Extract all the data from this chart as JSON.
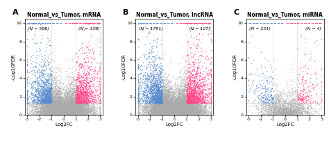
{
  "panels": [
    {
      "label": "A",
      "title": "Normal_vs_Tumor, mRNA",
      "n_left": "(N = 588)",
      "n_right": "(N = 118)",
      "xlim": [
        -3.2,
        3.2
      ],
      "ylim": [
        0,
        10.5
      ],
      "xlabel": "Log2FC",
      "ylabel": "-Log10FDR",
      "seed": 42,
      "n_total": 12000,
      "fc_thresh": 1.0,
      "fdr_thresh": 1.3
    },
    {
      "label": "B",
      "title": "Normal_vs_Tumor, lncRNA",
      "n_left": "(N = 1791)",
      "n_right": "(N = 107)",
      "xlim": [
        -3.2,
        3.2
      ],
      "ylim": [
        0,
        10.5
      ],
      "xlabel": "Log2FC",
      "ylabel": "-Log10FDR",
      "seed": 77,
      "n_total": 15000,
      "fc_thresh": 1.0,
      "fdr_thresh": 1.3
    },
    {
      "label": "C",
      "title": "Normal_vs_Tumor, miRNA",
      "n_left": "(N = 231)",
      "n_right": "(N = 4)",
      "xlim": [
        -3.2,
        3.2
      ],
      "ylim": [
        0,
        10.5
      ],
      "xlabel": "Log2FC",
      "ylabel": "-Log10FDR",
      "seed": 55,
      "n_total": 2500,
      "fc_thresh": 1.0,
      "fdr_thresh": 1.3
    }
  ],
  "color_gray": "#AAAAAA",
  "color_pink": "#FF4488",
  "color_blue": "#5588CC",
  "marker_size": 1.2,
  "alpha_gray": 0.5,
  "alpha_sig": 0.75
}
